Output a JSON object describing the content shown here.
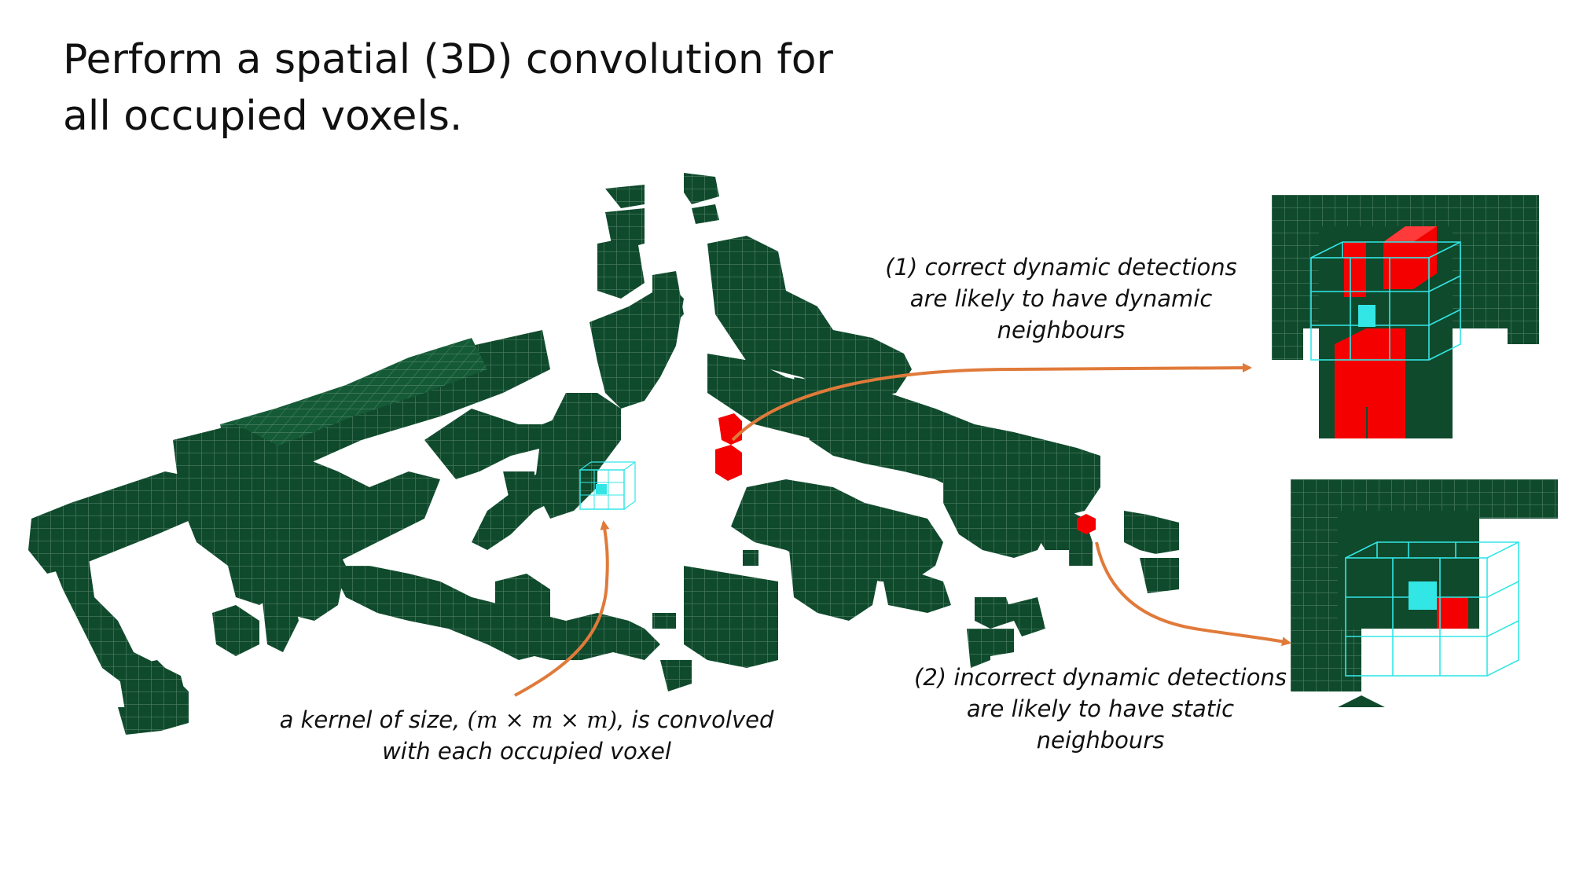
{
  "title": {
    "line1": "Perform a spatial (3D) convolution for",
    "line2": "all occupied voxels."
  },
  "annotations": {
    "dynamic": {
      "line1": "(1) correct dynamic detections",
      "line2": "are likely to have dynamic",
      "line3": "neighbours"
    },
    "static": {
      "line1": "(2) incorrect dynamic detections",
      "line2": "are likely to have static",
      "line3": "neighbours"
    },
    "kernel": {
      "line1_pre": "a kernel of size, ",
      "line1_math": "(m × m × m)",
      "line1_post": ", is convolved",
      "line2": "with each occupied voxel"
    }
  },
  "colors": {
    "voxel": "#0f4a2c",
    "dynamic": "#f40000",
    "kernel": "#33e6e6",
    "arrow": "#e07a3a"
  }
}
